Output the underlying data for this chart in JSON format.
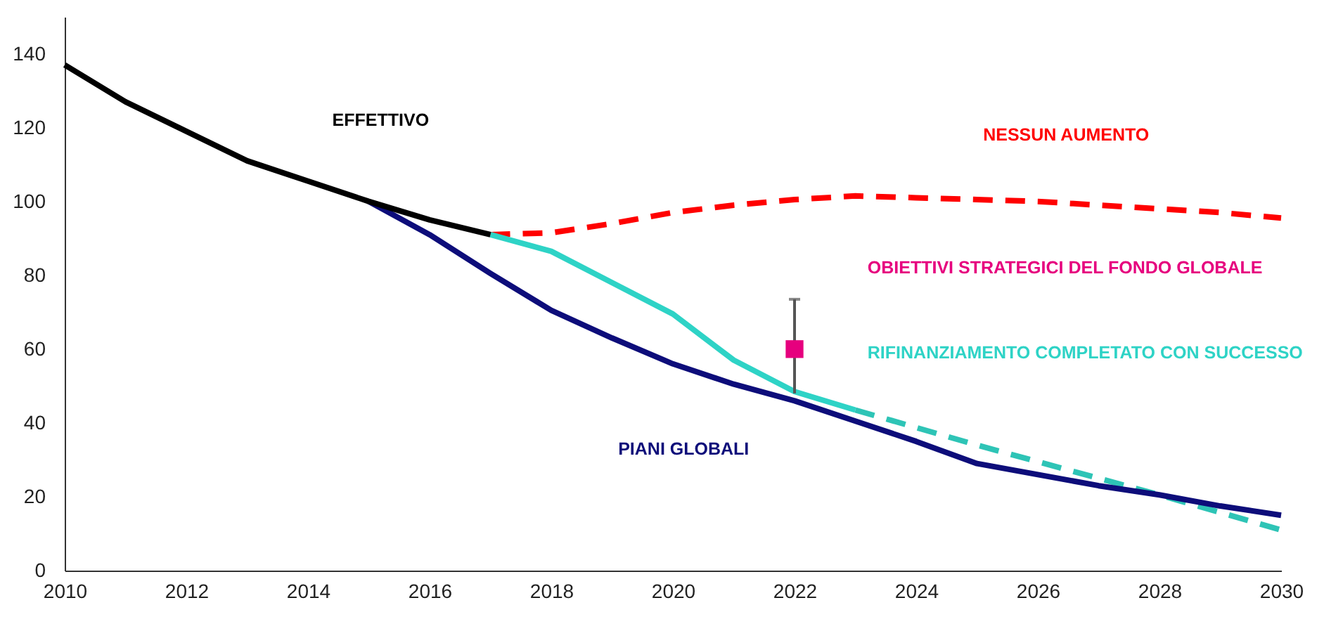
{
  "chart_data": {
    "type": "line",
    "xlim": [
      2010,
      2030
    ],
    "xticks": [
      2010,
      2012,
      2014,
      2016,
      2018,
      2020,
      2022,
      2024,
      2026,
      2028,
      2030
    ],
    "ylim": [
      0,
      150
    ],
    "yticks": [
      0,
      20,
      40,
      60,
      80,
      100,
      120,
      140
    ],
    "series": [
      {
        "name": "NESSUN AUMENTO",
        "color": "#ff0000",
        "line_style": "dashed",
        "x": [
          2017,
          2018,
          2019,
          2020,
          2021,
          2022,
          2023,
          2024,
          2025,
          2026,
          2027,
          2028,
          2029,
          2030
        ],
        "values": [
          91,
          91.5,
          94,
          97,
          99,
          100.5,
          101.5,
          101,
          100.5,
          100,
          99,
          98,
          97,
          95.5
        ]
      },
      {
        "color": "#2ec4b6",
        "line_style": "dashed",
        "x": [
          2023,
          2025,
          2028,
          2030
        ],
        "values": [
          43.5,
          34,
          20.5,
          11
        ]
      },
      {
        "name": "RIFINANZIAMENTO COMPLETATO CON SUCCESSO",
        "color": "#2ed3c6",
        "x": [
          2017,
          2018,
          2019,
          2020,
          2021,
          2022,
          2023
        ],
        "values": [
          91,
          86.5,
          78,
          69.5,
          57,
          48.5,
          43.5
        ]
      },
      {
        "name": "PIANI GLOBALI",
        "color": "#0d0d7a",
        "x": [
          2015,
          2016,
          2017,
          2018,
          2019,
          2020,
          2021,
          2022,
          2023,
          2024,
          2025,
          2026,
          2027,
          2028,
          2029,
          2030
        ],
        "values": [
          100,
          91,
          80.5,
          70.5,
          63,
          56,
          50.5,
          46,
          40.5,
          35,
          29,
          26,
          23,
          20.5,
          17.5,
          15
        ]
      },
      {
        "name": "EFFETTIVO",
        "color": "#000000",
        "x": [
          2010,
          2011,
          2012,
          2013,
          2014,
          2015,
          2016,
          2017
        ],
        "values": [
          137,
          127,
          119,
          111,
          105.5,
          100,
          95,
          91
        ]
      },
      {
        "name": "OBIETTIVI STRATEGICI DEL FONDO GLOBALE",
        "type": "scatter",
        "marker": "square",
        "color": "#e6007e",
        "x": [
          2022
        ],
        "values": [
          60
        ],
        "errors": [
          [
            48,
            73.5
          ]
        ]
      }
    ]
  }
}
